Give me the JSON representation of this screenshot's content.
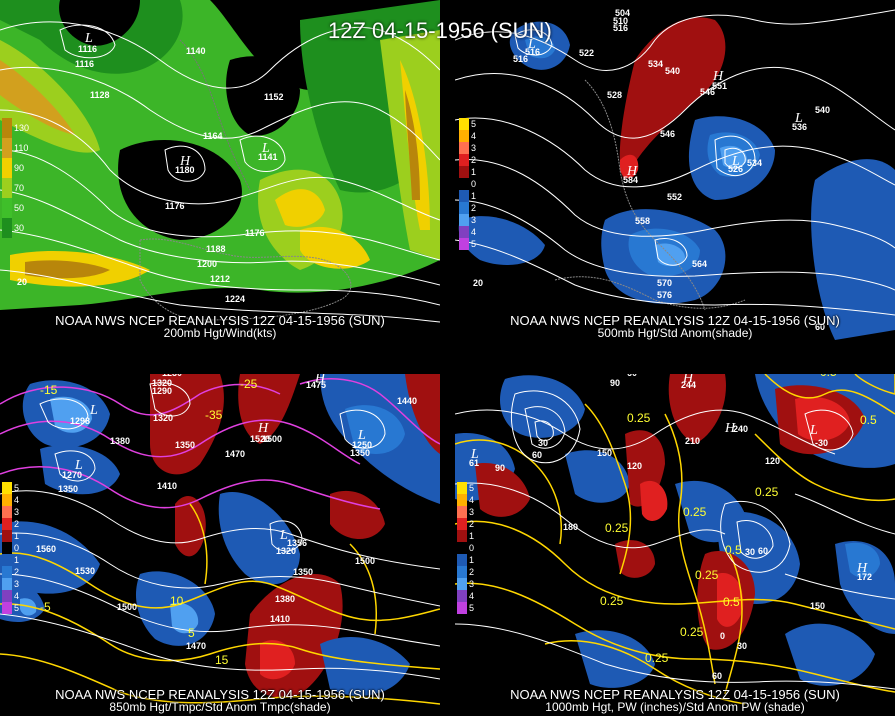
{
  "main_title": "12Z 04-15-1956 (SUN)",
  "panels": [
    {
      "id": "p1",
      "footer_line1": "NOAA NWS NCEP REANALYSIS 12Z 04-15-1956 (SUN)",
      "footer_line2": "200mb Hgt/Wind(kts)",
      "colorbar_labels": [
        "130",
        "110",
        "90",
        "70",
        "50",
        "30"
      ],
      "colorbar_colors": [
        "#b8860b",
        "#d2a01e",
        "#f0d000",
        "#9ccf1e",
        "#3fbf2a",
        "#1e8f1e"
      ],
      "contour_labels": [
        "1116",
        "1128",
        "1140",
        "1152",
        "1164",
        "1176",
        "1188",
        "1200",
        "1212",
        "1224",
        "1141",
        "1180",
        "1116",
        "20"
      ],
      "centers": [
        {
          "label": "L",
          "value": "1116"
        },
        {
          "label": "H",
          "value": "1180"
        },
        {
          "label": "L",
          "value": "1141"
        }
      ]
    },
    {
      "id": "p2",
      "footer_line1": "NOAA NWS NCEP REANALYSIS 12Z 04-15-1956 (SUN)",
      "footer_line2": "500mb Hgt/Std Anom(shade)",
      "colorbar_labels": [
        "5",
        "4",
        "3",
        "2",
        "1",
        "0",
        "1",
        "2",
        "3",
        "4",
        "5"
      ],
      "colorbar_colors": [
        "#ffe000",
        "#ffb000",
        "#ff7050",
        "#e02020",
        "#a01010",
        "#000000",
        "#1e5ab4",
        "#2878d2",
        "#50a0f0",
        "#8040c0",
        "#c040e0"
      ],
      "contour_labels": [
        "504",
        "510",
        "516",
        "516",
        "522",
        "528",
        "534",
        "540",
        "546",
        "546",
        "540",
        "552",
        "558",
        "564",
        "570",
        "576",
        "534",
        "20",
        "60"
      ],
      "centers": [
        {
          "label": "H",
          "value": "551"
        },
        {
          "label": "L",
          "value": "526"
        },
        {
          "label": "H",
          "value": "584"
        },
        {
          "label": "L",
          "value": "536"
        },
        {
          "label": "L",
          "value": "516"
        }
      ]
    },
    {
      "id": "p3",
      "footer_line1": "NOAA NWS NCEP REANALYSIS 12Z 04-15-1956 (SUN)",
      "footer_line2": "850mb Hgt/Tmpc/Std Anom Tmpc(shade)",
      "colorbar_labels": [
        "5",
        "4",
        "3",
        "2",
        "1",
        "0",
        "1",
        "2",
        "3",
        "4",
        "5"
      ],
      "colorbar_colors": [
        "#ffe000",
        "#ffb000",
        "#ff7050",
        "#e02020",
        "#a01010",
        "#000000",
        "#1e5ab4",
        "#2878d2",
        "#50a0f0",
        "#8040c0",
        "#c040e0"
      ],
      "contour_labels": [
        "1230",
        "1320",
        "1290",
        "1380",
        "1350",
        "1410",
        "1470",
        "1500",
        "1530",
        "1560",
        "1380",
        "1350",
        "1410",
        "1470",
        "1500",
        "1440",
        "1356",
        "1350",
        "1410",
        "15",
        "10",
        "5",
        "-5",
        "-15",
        "-25",
        "-35"
      ],
      "centers": [
        {
          "label": "L",
          "value": "1298"
        },
        {
          "label": "L",
          "value": "1270"
        },
        {
          "label": "H",
          "value": "1520"
        },
        {
          "label": "H",
          "value": "1475"
        },
        {
          "label": "L",
          "value": "1250"
        },
        {
          "label": "L",
          "value": "1320"
        }
      ]
    },
    {
      "id": "p4",
      "footer_line1": "NOAA NWS NCEP REANALYSIS 12Z 04-15-1956 (SUN)",
      "footer_line2": "1000mb Hgt, PW (inches)/Std Anom PW (shade)",
      "colorbar_labels": [
        "5",
        "4",
        "3",
        "2",
        "1",
        "0",
        "1",
        "2",
        "3",
        "4",
        "5"
      ],
      "colorbar_colors": [
        "#ffe000",
        "#ffb000",
        "#ff7050",
        "#e02020",
        "#a01010",
        "#000000",
        "#1e5ab4",
        "#2878d2",
        "#50a0f0",
        "#8040c0",
        "#c040e0"
      ],
      "contour_labels": [
        "60",
        "90",
        "30",
        "60",
        "180",
        "150",
        "120",
        "210",
        "240",
        "120",
        "30",
        "60",
        "90",
        "150",
        "0",
        "30",
        "60",
        "0.5",
        "0.25",
        "0.25",
        "0.25",
        "0.5",
        "0.25",
        "0.25",
        "0.25",
        "0.25",
        "0.5",
        "0.5",
        "0.25"
      ],
      "centers": [
        {
          "label": "H",
          "value": "244"
        },
        {
          "label": "H",
          "value": "240"
        },
        {
          "label": "L",
          "value": "-30"
        },
        {
          "label": "H",
          "value": "172"
        },
        {
          "label": "L",
          "value": "61"
        }
      ]
    }
  ]
}
